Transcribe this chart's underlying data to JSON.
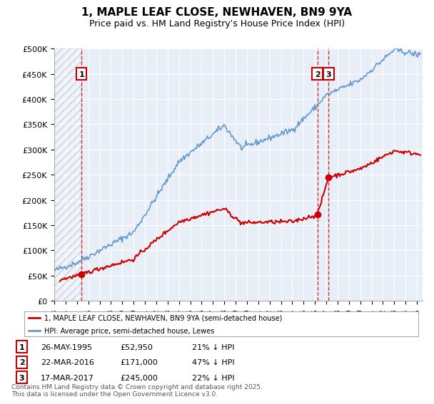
{
  "title1": "1, MAPLE LEAF CLOSE, NEWHAVEN, BN9 9YA",
  "title2": "Price paid vs. HM Land Registry's House Price Index (HPI)",
  "legend_line1": "1, MAPLE LEAF CLOSE, NEWHAVEN, BN9 9YA (semi-detached house)",
  "legend_line2": "HPI: Average price, semi-detached house, Lewes",
  "ylabel_ticks": [
    "£0",
    "£50K",
    "£100K",
    "£150K",
    "£200K",
    "£250K",
    "£300K",
    "£350K",
    "£400K",
    "£450K",
    "£500K"
  ],
  "ytick_vals": [
    0,
    50000,
    100000,
    150000,
    200000,
    250000,
    300000,
    350000,
    400000,
    450000,
    500000
  ],
  "ylim": [
    0,
    500000
  ],
  "xlim_start": 1993.0,
  "xlim_end": 2025.5,
  "sale1_date": 1995.4,
  "sale1_price": 52950,
  "sale1_label": "1",
  "sale2_date": 2016.22,
  "sale2_price": 171000,
  "sale2_label": "2",
  "sale3_date": 2017.21,
  "sale3_price": 245000,
  "sale3_label": "3",
  "hatch_end": 1995.4,
  "price_line_color": "#cc0000",
  "hpi_line_color": "#6699cc",
  "background_color": "#e8eef7",
  "grid_color": "#ffffff",
  "copyright_text": "Contains HM Land Registry data © Crown copyright and database right 2025.\nThis data is licensed under the Open Government Licence v3.0.",
  "footer_box_color": "#ffffff",
  "sale_box_color": "#ffffff",
  "sale_box_border": "#cc0000",
  "vline_color": "#cc0000",
  "table_rows": [
    [
      "1",
      "26-MAY-1995",
      "£52,950",
      "21% ↓ HPI"
    ],
    [
      "2",
      "22-MAR-2016",
      "£171,000",
      "47% ↓ HPI"
    ],
    [
      "3",
      "17-MAR-2017",
      "£245,000",
      "22% ↓ HPI"
    ]
  ]
}
